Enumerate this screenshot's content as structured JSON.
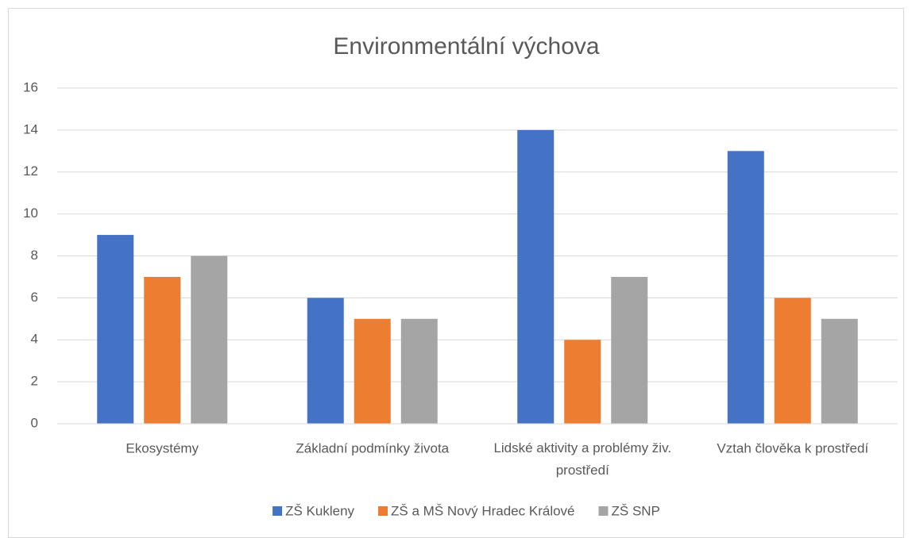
{
  "chart_data": {
    "type": "bar",
    "title": "Environmentální výchova",
    "categories": [
      "Ekosystémy",
      "Základní podmínky života",
      "Lidské aktivity a problémy živ. prostředí",
      "Vztah člověka k prostředí"
    ],
    "series": [
      {
        "name": "ZŠ Kukleny",
        "color": "#4472c4",
        "values": [
          9,
          6,
          14,
          13
        ]
      },
      {
        "name": "ZŠ a MŠ Nový Hradec Králové",
        "color": "#ed7d31",
        "values": [
          7,
          5,
          4,
          6
        ]
      },
      {
        "name": "ZŠ SNP",
        "color": "#a5a5a5",
        "values": [
          8,
          5,
          7,
          5
        ]
      }
    ],
    "ylim": [
      0,
      16
    ],
    "yticks": [
      0,
      2,
      4,
      6,
      8,
      10,
      12,
      14,
      16
    ],
    "grid": true,
    "legend": "bottom"
  }
}
